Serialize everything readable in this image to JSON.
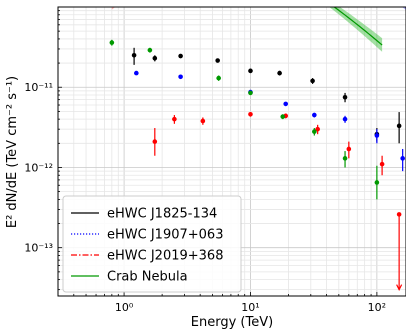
{
  "chart_data": {
    "type": "line",
    "xlabel": "Energy (TeV)",
    "ylabel": "E² dN/dE (TeV cm⁻² s⁻¹)",
    "x_scale": "log",
    "y_scale": "log",
    "xlim": [
      0.3,
      170
    ],
    "ylim": [
      2.5e-14,
      1e-10
    ],
    "x_ticks": [
      {
        "v": 1,
        "label": "10⁰"
      },
      {
        "v": 10,
        "label": "10¹"
      },
      {
        "v": 100,
        "label": "10²"
      }
    ],
    "y_ticks": [
      {
        "v": 1e-13,
        "label": "10⁻¹³"
      },
      {
        "v": 1e-12,
        "label": "10⁻¹²"
      },
      {
        "v": 1e-11,
        "label": "10⁻¹¹"
      }
    ],
    "grid": true,
    "legend_position": "bottom-left",
    "series": [
      {
        "name": "eHWC J1825-134",
        "color": "#000000",
        "line_style": "solid",
        "band_color": "#808080",
        "model": {
          "E0": 10,
          "N0": 1.41e-11,
          "alpha": 2.12,
          "beta": 0.12
        },
        "band_frac": 0.15,
        "curve_range": [
          0.4,
          160
        ],
        "points": [
          {
            "x": 1.2,
            "y": 2.5e-11,
            "yerr_lo": 6e-12,
            "yerr_hi": 6e-12
          },
          {
            "x": 1.75,
            "y": 2.3e-11,
            "yerr_lo": 2e-12,
            "yerr_hi": 2e-12
          },
          {
            "x": 2.8,
            "y": 2.45e-11,
            "yerr_lo": 1.5e-12,
            "yerr_hi": 1.5e-12
          },
          {
            "x": 5.5,
            "y": 2.15e-11,
            "yerr_lo": 1e-12,
            "yerr_hi": 1e-12
          },
          {
            "x": 10,
            "y": 1.6e-11,
            "yerr_lo": 1e-12,
            "yerr_hi": 1e-12
          },
          {
            "x": 17,
            "y": 1.5e-11,
            "yerr_lo": 1e-12,
            "yerr_hi": 1e-12
          },
          {
            "x": 31,
            "y": 1.2e-11,
            "yerr_lo": 1e-12,
            "yerr_hi": 1e-12
          },
          {
            "x": 56,
            "y": 7.5e-12,
            "yerr_lo": 1e-12,
            "yerr_hi": 1e-12
          },
          {
            "x": 100,
            "y": 2.6e-12,
            "yerr_lo": 5e-13,
            "yerr_hi": 5e-13
          },
          {
            "x": 150,
            "y": 3.3e-12,
            "yerr_lo": 1.3e-12,
            "yerr_hi": 1.6e-12
          }
        ]
      },
      {
        "name": "eHWC J1907+063",
        "color": "#0000ff",
        "line_style": "dotted",
        "band_color": "#5050ff",
        "model": {
          "E0": 10,
          "N0": 9.5e-12,
          "alpha": 2.46,
          "beta": 0.11
        },
        "band_frac": 0.1,
        "curve_range": [
          0.8,
          180
        ],
        "points": [
          {
            "x": 1.25,
            "y": 1.5e-11,
            "yerr_lo": 5e-13,
            "yerr_hi": 5e-13
          },
          {
            "x": 2.8,
            "y": 1.35e-11,
            "yerr_lo": 5e-13,
            "yerr_hi": 5e-13
          },
          {
            "x": 10,
            "y": 8.7e-12,
            "yerr_lo": 3e-13,
            "yerr_hi": 3e-13
          },
          {
            "x": 19,
            "y": 6.2e-12,
            "yerr_lo": 3e-13,
            "yerr_hi": 3e-13
          },
          {
            "x": 32,
            "y": 4.5e-12,
            "yerr_lo": 3e-13,
            "yerr_hi": 3e-13
          },
          {
            "x": 56,
            "y": 4e-12,
            "yerr_lo": 4e-13,
            "yerr_hi": 4e-13
          },
          {
            "x": 100,
            "y": 2.5e-12,
            "yerr_lo": 5e-13,
            "yerr_hi": 5e-13
          },
          {
            "x": 160,
            "y": 1.3e-12,
            "yerr_lo": 4e-13,
            "yerr_hi": 4e-13
          }
        ]
      },
      {
        "name": "eHWC J2019+368",
        "color": "#ff0000",
        "line_style": "dashdot",
        "band_color": "#ff6060",
        "model": {
          "E0": 10,
          "N0": 4.3e-12,
          "alpha": 1.98,
          "beta": 0.2
        },
        "band_frac": 0.17,
        "curve_range": [
          0.8,
          110
        ],
        "points": [
          {
            "x": 1.75,
            "y": 2.1e-12,
            "yerr_lo": 7e-13,
            "yerr_hi": 1e-12
          },
          {
            "x": 2.5,
            "y": 4e-12,
            "yerr_lo": 5e-13,
            "yerr_hi": 5e-13
          },
          {
            "x": 4.2,
            "y": 3.8e-12,
            "yerr_lo": 4e-13,
            "yerr_hi": 4e-13
          },
          {
            "x": 10,
            "y": 4.6e-12,
            "yerr_lo": 3e-13,
            "yerr_hi": 3e-13
          },
          {
            "x": 19,
            "y": 4.4e-12,
            "yerr_lo": 3e-13,
            "yerr_hi": 3e-13
          },
          {
            "x": 34,
            "y": 3e-12,
            "yerr_lo": 4e-13,
            "yerr_hi": 4e-13
          },
          {
            "x": 60,
            "y": 1.7e-12,
            "yerr_lo": 4e-13,
            "yerr_hi": 4e-13
          },
          {
            "x": 110,
            "y": 1.1e-12,
            "yerr_lo": 3e-13,
            "yerr_hi": 3e-13
          }
        ],
        "upper_limits": [
          {
            "x": 150,
            "y": 2.6e-13,
            "y_arrow": 3e-14
          }
        ]
      },
      {
        "name": "Crab Nebula",
        "color": "#009900",
        "line_style": "solid",
        "band_color": "#33bb33",
        "model": {
          "E0": 7,
          "N0": 1.29e-11,
          "alpha": 2.79,
          "beta": 0.1
        },
        "band_frac": 0.14,
        "curve_range": [
          0.4,
          110
        ],
        "points": [
          {
            "x": 0.8,
            "y": 3.6e-11,
            "yerr_lo": 3e-12,
            "yerr_hi": 3e-12
          },
          {
            "x": 1.6,
            "y": 2.9e-11,
            "yerr_lo": 2e-12,
            "yerr_hi": 2e-12
          },
          {
            "x": 5.6,
            "y": 1.3e-11,
            "yerr_lo": 1e-12,
            "yerr_hi": 1e-12
          },
          {
            "x": 10,
            "y": 8.5e-12,
            "yerr_lo": 3e-13,
            "yerr_hi": 3e-13
          },
          {
            "x": 18,
            "y": 4.3e-12,
            "yerr_lo": 3e-13,
            "yerr_hi": 3e-13
          },
          {
            "x": 32,
            "y": 2.8e-12,
            "yerr_lo": 3e-13,
            "yerr_hi": 3e-13
          },
          {
            "x": 56,
            "y": 1.3e-12,
            "yerr_lo": 3e-13,
            "yerr_hi": 3e-13
          },
          {
            "x": 100,
            "y": 6.5e-13,
            "yerr_lo": 2.5e-13,
            "yerr_hi": 4e-13
          }
        ]
      }
    ]
  }
}
